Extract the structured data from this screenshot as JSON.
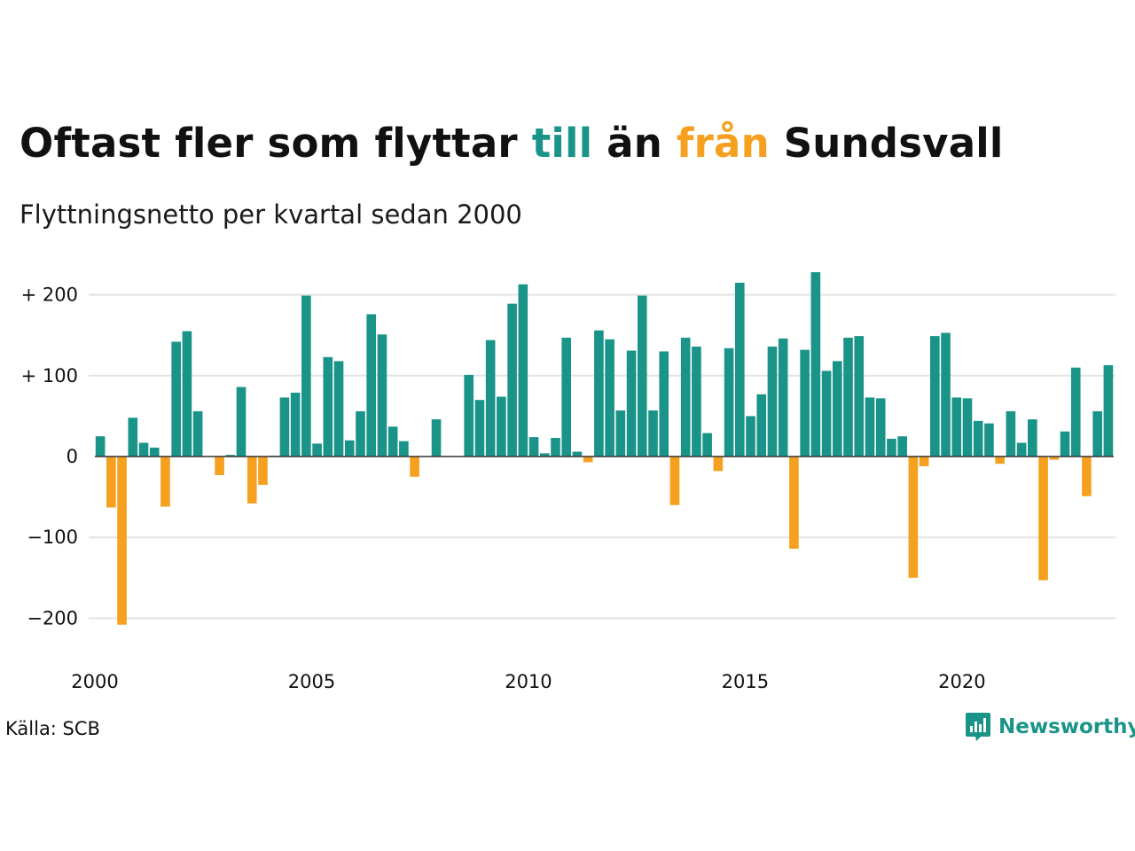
{
  "title": {
    "part1": "Oftast fler som flyttar ",
    "till": "till",
    "part2": " än ",
    "fran": "från",
    "part3": " Sundsvall"
  },
  "subtitle": "Flyttningsnetto per kvartal sedan 2000",
  "source": "Källa: SCB",
  "logo": {
    "text": "Newsworthy",
    "icon": "bar-chart-bubble-icon"
  },
  "colors": {
    "positive": "#1a9488",
    "negative": "#f5a01f",
    "grid": "#e3e3e3",
    "baseline": "#333333"
  },
  "chart_data": {
    "type": "bar",
    "title": "Oftast fler som flyttar till än från Sundsvall",
    "subtitle": "Flyttningsnetto per kvartal sedan 2000",
    "xlabel": "",
    "ylabel": "",
    "x_start": 2000,
    "periods_per_year": 4,
    "xlim": [
      2000,
      2023.25
    ],
    "ylim": [
      -250,
      250
    ],
    "y_ticks": [
      200,
      100,
      0,
      -100,
      -200
    ],
    "y_tick_labels": [
      "+ 200",
      "+ 100",
      "0",
      "−100",
      "−200"
    ],
    "x_ticks": [
      2000,
      2005,
      2010,
      2015,
      2020
    ],
    "x_tick_labels": [
      "2000",
      "2005",
      "2010",
      "2015",
      "2020"
    ],
    "grid": true,
    "values": [
      25,
      -63,
      -208,
      48,
      17,
      11,
      -62,
      142,
      155,
      56,
      0,
      -23,
      2,
      86,
      -58,
      -35,
      1,
      73,
      79,
      199,
      16,
      123,
      118,
      20,
      56,
      176,
      151,
      37,
      19,
      -25,
      0,
      46,
      0,
      0,
      101,
      70,
      144,
      74,
      189,
      213,
      24,
      4,
      23,
      147,
      6,
      -7,
      156,
      145,
      57,
      131,
      199,
      57,
      130,
      -60,
      147,
      136,
      29,
      -18,
      134,
      215,
      50,
      77,
      136,
      146,
      -114,
      132,
      228,
      106,
      118,
      147,
      149,
      73,
      72,
      22,
      25,
      -150,
      -12,
      149,
      153,
      73,
      72,
      44,
      41,
      -9,
      56,
      17,
      46,
      -153,
      -4,
      31,
      110,
      -49,
      56,
      113
    ]
  }
}
